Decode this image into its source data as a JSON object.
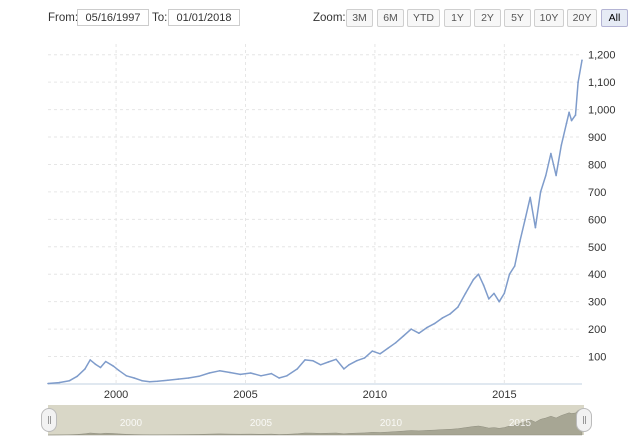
{
  "range_selector": {
    "from_label": "From:",
    "from_value": "05/16/1997",
    "to_label": "To:",
    "to_value": "01/01/2018",
    "zoom_label": "Zoom:",
    "zoom_buttons": [
      "3M",
      "6M",
      "YTD",
      "1Y",
      "2Y",
      "5Y",
      "10Y",
      "20Y",
      "All"
    ],
    "active_zoom": "All"
  },
  "navigator": {
    "labels": [
      "2000",
      "2005",
      "2010",
      "2015"
    ]
  },
  "colors": {
    "line": "#7f9ccb",
    "gridline": "#e6e6e6",
    "navigator_fill": "#d9d7c7",
    "active_button": "#e6ebf5"
  },
  "chart_data": {
    "type": "line",
    "title": "",
    "xlabel": "",
    "ylabel": "",
    "x_range": [
      1997.37,
      2018.0
    ],
    "ylim": [
      0,
      1250
    ],
    "x_ticks": [
      "2000",
      "2005",
      "2010",
      "2015"
    ],
    "y_ticks": [
      "100",
      "200",
      "300",
      "400",
      "500",
      "600",
      "700",
      "800",
      "900",
      "1,000",
      "1,100",
      "1,200"
    ],
    "grid": true,
    "series": [
      {
        "name": "",
        "x": [
          1997.37,
          1997.8,
          1998.2,
          1998.5,
          1998.8,
          1999.0,
          1999.2,
          1999.4,
          1999.6,
          1999.9,
          2000.1,
          2000.4,
          2000.7,
          2001.0,
          2001.3,
          2001.6,
          2002.0,
          2002.4,
          2002.8,
          2003.2,
          2003.6,
          2004.0,
          2004.4,
          2004.8,
          2005.2,
          2005.6,
          2006.0,
          2006.3,
          2006.6,
          2007.0,
          2007.3,
          2007.6,
          2007.9,
          2008.2,
          2008.5,
          2008.8,
          2009.0,
          2009.3,
          2009.6,
          2009.9,
          2010.2,
          2010.5,
          2010.8,
          2011.1,
          2011.4,
          2011.7,
          2012.0,
          2012.3,
          2012.6,
          2012.9,
          2013.2,
          2013.5,
          2013.8,
          2014.0,
          2014.2,
          2014.4,
          2014.6,
          2014.8,
          2015.0,
          2015.2,
          2015.4,
          2015.6,
          2015.8,
          2016.0,
          2016.2,
          2016.4,
          2016.6,
          2016.8,
          2017.0,
          2017.2,
          2017.4,
          2017.5,
          2017.6,
          2017.75,
          2017.85,
          2018.0
        ],
        "values": [
          2,
          5,
          12,
          28,
          55,
          88,
          72,
          60,
          82,
          65,
          50,
          30,
          22,
          12,
          8,
          10,
          14,
          18,
          22,
          28,
          40,
          48,
          42,
          35,
          40,
          30,
          38,
          22,
          30,
          55,
          88,
          85,
          70,
          80,
          90,
          55,
          70,
          85,
          95,
          120,
          110,
          130,
          150,
          175,
          200,
          185,
          205,
          220,
          240,
          255,
          280,
          330,
          380,
          400,
          360,
          310,
          330,
          300,
          330,
          400,
          430,
          520,
          600,
          680,
          570,
          700,
          760,
          840,
          760,
          870,
          950,
          990,
          960,
          980,
          1100,
          1180
        ]
      }
    ]
  }
}
